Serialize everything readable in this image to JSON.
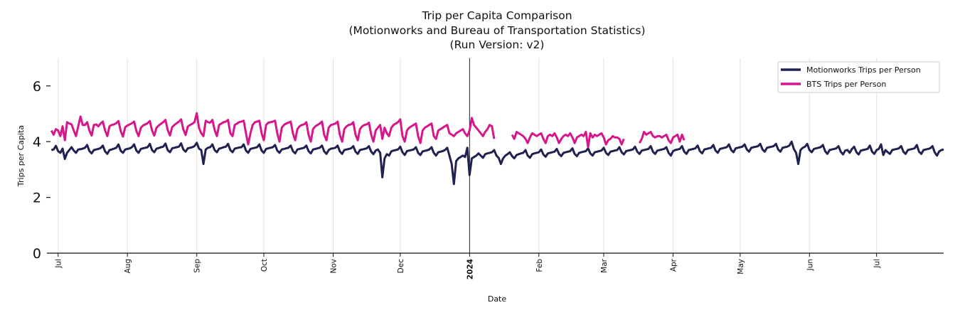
{
  "chart_data": {
    "type": "line",
    "title": [
      "Trip per Capita Comparison",
      "(Motionworks and Bureau of Transportation Statistics)",
      "(Run Version: v2)"
    ],
    "xlabel": "Date",
    "ylabel": "Trips per Capita",
    "xlim": [
      "2023-06-26",
      "2024-07-31"
    ],
    "ylim": [
      0,
      7
    ],
    "yticks": [
      0,
      2,
      4,
      6
    ],
    "ytick_labels": [
      "0",
      "2",
      "4",
      "6"
    ],
    "xticks": [
      {
        "date": "2023-07-01",
        "label": "Jul",
        "bold": false
      },
      {
        "date": "2023-08-01",
        "label": "Aug",
        "bold": false
      },
      {
        "date": "2023-09-01",
        "label": "Sep",
        "bold": false
      },
      {
        "date": "2023-10-01",
        "label": "Oct",
        "bold": false
      },
      {
        "date": "2023-11-01",
        "label": "Nov",
        "bold": false
      },
      {
        "date": "2023-12-01",
        "label": "Dec",
        "bold": false
      },
      {
        "date": "2024-01-01",
        "label": "2024",
        "bold": true
      },
      {
        "date": "2024-02-01",
        "label": "Feb",
        "bold": false
      },
      {
        "date": "2024-03-01",
        "label": "Mar",
        "bold": false
      },
      {
        "date": "2024-04-01",
        "label": "Apr",
        "bold": false
      },
      {
        "date": "2024-05-01",
        "label": "May",
        "bold": false
      },
      {
        "date": "2024-06-01",
        "label": "Jun",
        "bold": false
      },
      {
        "date": "2024-07-01",
        "label": "Jul",
        "bold": false
      }
    ],
    "vertical_marker": "2024-01-01",
    "grid": "vertical only",
    "legend": "top-right",
    "series": [
      {
        "name": "Motionworks Trips per Person",
        "color": "#1f2150",
        "daily_by_month": [
          {
            "month": "2023-06",
            "first_day": 28,
            "values": [
              3.7,
              3.72,
              3.85
            ]
          },
          {
            "month": "2023-07",
            "first_day": 1,
            "values": [
              3.66,
              3.6,
              3.75,
              3.38,
              3.6,
              3.7,
              3.8,
              3.68,
              3.6,
              3.72,
              3.73,
              3.75,
              3.78,
              3.88,
              3.66,
              3.58,
              3.7,
              3.72,
              3.74,
              3.77,
              3.86,
              3.65,
              3.56,
              3.7,
              3.72,
              3.75,
              3.78,
              3.9,
              3.67,
              3.6,
              3.72
            ]
          },
          {
            "month": "2023-08",
            "first_day": 1,
            "values": [
              3.74,
              3.76,
              3.8,
              3.9,
              3.68,
              3.6,
              3.74,
              3.76,
              3.78,
              3.8,
              3.92,
              3.7,
              3.62,
              3.75,
              3.77,
              3.8,
              3.82,
              3.93,
              3.7,
              3.62,
              3.76,
              3.78,
              3.8,
              3.82,
              3.94,
              3.72,
              3.64,
              3.76,
              3.78,
              3.8,
              3.84
            ]
          },
          {
            "month": "2023-09",
            "first_day": 1,
            "values": [
              3.96,
              3.75,
              3.7,
              3.2,
              3.72,
              3.78,
              3.8,
              3.9,
              3.7,
              3.62,
              3.75,
              3.77,
              3.8,
              3.82,
              3.92,
              3.7,
              3.62,
              3.75,
              3.77,
              3.79,
              3.8,
              3.9,
              3.68,
              3.6,
              3.74,
              3.76,
              3.78,
              3.8,
              3.9,
              3.68
            ]
          },
          {
            "month": "2023-10",
            "first_day": 1,
            "values": [
              3.6,
              3.74,
              3.76,
              3.78,
              3.8,
              3.88,
              3.68,
              3.6,
              3.72,
              3.74,
              3.76,
              3.78,
              3.86,
              3.66,
              3.58,
              3.72,
              3.74,
              3.76,
              3.78,
              3.86,
              3.66,
              3.58,
              3.72,
              3.74,
              3.76,
              3.78,
              3.86,
              3.65,
              3.56,
              3.7,
              3.75
            ]
          },
          {
            "month": "2023-11",
            "first_day": 1,
            "values": [
              3.76,
              3.78,
              3.86,
              3.65,
              3.56,
              3.7,
              3.72,
              3.74,
              3.76,
              3.84,
              3.64,
              3.56,
              3.7,
              3.72,
              3.74,
              3.76,
              3.84,
              3.64,
              3.55,
              3.68,
              3.72,
              3.6,
              2.72,
              3.4,
              3.55,
              3.5,
              3.65,
              3.68,
              3.7,
              3.72
            ]
          },
          {
            "month": "2023-12",
            "first_day": 1,
            "values": [
              3.82,
              3.62,
              3.52,
              3.66,
              3.68,
              3.7,
              3.72,
              3.8,
              3.6,
              3.52,
              3.65,
              3.67,
              3.69,
              3.72,
              3.8,
              3.6,
              3.5,
              3.62,
              3.64,
              3.66,
              3.7,
              3.78,
              3.5,
              3.2,
              2.48,
              3.3,
              3.4,
              3.45,
              3.5,
              3.45,
              3.78
            ]
          },
          {
            "month": "2024-01",
            "first_day": 1,
            "values": [
              2.8,
              3.4,
              3.45,
              3.5,
              3.58,
              3.5,
              3.42,
              3.55,
              3.58,
              3.6,
              3.62,
              3.7,
              3.5,
              3.42,
              3.2,
              3.4,
              3.5,
              3.55,
              3.62,
              3.48,
              3.4,
              3.52,
              3.55,
              3.58,
              3.6,
              3.7,
              3.5,
              3.42,
              3.55,
              3.58,
              3.6
            ]
          },
          {
            "month": "2024-02",
            "first_day": 1,
            "values": [
              3.62,
              3.72,
              3.54,
              3.46,
              3.58,
              3.6,
              3.62,
              3.64,
              3.74,
              3.56,
              3.48,
              3.6,
              3.62,
              3.64,
              3.66,
              3.76,
              3.56,
              3.48,
              3.6,
              3.62,
              3.64,
              3.66,
              3.76,
              3.58,
              3.5,
              3.62,
              3.64,
              3.66,
              3.68
            ]
          },
          {
            "month": "2024-03",
            "first_day": 1,
            "values": [
              3.78,
              3.6,
              3.52,
              3.64,
              3.66,
              3.68,
              3.7,
              3.8,
              3.62,
              3.54,
              3.66,
              3.68,
              3.7,
              3.72,
              3.82,
              3.64,
              3.56,
              3.68,
              3.7,
              3.72,
              3.74,
              3.84,
              3.64,
              3.56,
              3.68,
              3.7,
              3.72,
              3.74,
              3.8,
              3.6,
              3.5
            ]
          },
          {
            "month": "2024-04",
            "first_day": 1,
            "values": [
              3.66,
              3.7,
              3.72,
              3.74,
              3.84,
              3.64,
              3.56,
              3.7,
              3.72,
              3.74,
              3.76,
              3.86,
              3.66,
              3.58,
              3.72,
              3.74,
              3.76,
              3.78,
              3.88,
              3.68,
              3.6,
              3.74,
              3.76,
              3.78,
              3.8,
              3.9,
              3.7,
              3.62,
              3.76,
              3.78
            ]
          },
          {
            "month": "2024-05",
            "first_day": 1,
            "values": [
              3.8,
              3.82,
              3.9,
              3.72,
              3.64,
              3.78,
              3.8,
              3.82,
              3.84,
              3.92,
              3.72,
              3.64,
              3.78,
              3.8,
              3.82,
              3.84,
              3.92,
              3.72,
              3.64,
              3.78,
              3.8,
              3.82,
              3.86,
              4.0,
              3.74,
              3.6,
              3.2,
              3.7,
              3.78,
              3.82,
              3.92
            ]
          },
          {
            "month": "2024-06",
            "first_day": 1,
            "values": [
              3.7,
              3.62,
              3.74,
              3.76,
              3.78,
              3.8,
              3.88,
              3.66,
              3.56,
              3.7,
              3.72,
              3.74,
              3.76,
              3.84,
              3.64,
              3.54,
              3.68,
              3.7,
              3.6,
              3.74,
              3.82,
              3.62,
              3.54,
              3.68,
              3.7,
              3.72,
              3.74,
              3.86,
              3.64,
              3.56
            ]
          },
          {
            "month": "2024-07",
            "first_day": 1,
            "values": [
              3.7,
              3.74,
              3.9,
              3.52,
              3.7,
              3.62,
              3.56,
              3.7,
              3.72,
              3.74,
              3.76,
              3.84,
              3.64,
              3.56,
              3.7,
              3.72,
              3.74,
              3.76,
              3.88,
              3.64,
              3.56,
              3.7,
              3.72,
              3.74,
              3.76,
              3.84,
              3.62,
              3.5,
              3.65,
              3.7,
              3.72
            ]
          }
        ]
      },
      {
        "name": "BTS Trips per Person",
        "color": "#d6168a",
        "daily_by_month": [
          {
            "month": "2023-06",
            "first_day": 28,
            "values": [
              4.4,
              4.25,
              4.45
            ]
          },
          {
            "month": "2023-07",
            "first_day": 1,
            "values": [
              4.4,
              4.2,
              4.55,
              4.05,
              4.7,
              4.65,
              4.62,
              4.4,
              4.2,
              4.55,
              4.9,
              4.6,
              4.6,
              4.7,
              4.4,
              4.22,
              4.6,
              4.62,
              4.55,
              4.65,
              4.72,
              4.4,
              4.2,
              4.55,
              4.6,
              4.62,
              4.66,
              4.74,
              4.38,
              4.18,
              4.52
            ]
          },
          {
            "month": "2023-08",
            "first_day": 1,
            "values": [
              4.58,
              4.62,
              4.66,
              4.72,
              4.38,
              4.2,
              4.5,
              4.58,
              4.62,
              4.66,
              4.74,
              4.4,
              4.22,
              4.5,
              4.58,
              4.64,
              4.7,
              4.78,
              4.42,
              4.22,
              4.52,
              4.6,
              4.66,
              4.72,
              4.8,
              4.44,
              4.24,
              4.54,
              4.6,
              4.64,
              4.7
            ]
          },
          {
            "month": "2023-09",
            "first_day": 1,
            "values": [
              5.02,
              4.5,
              4.3,
              4.2,
              4.75,
              4.7,
              4.68,
              4.78,
              4.42,
              4.2,
              4.6,
              4.65,
              4.7,
              4.72,
              4.78,
              4.3,
              4.2,
              4.6,
              4.65,
              4.7,
              4.72,
              4.75,
              4.3,
              3.9,
              4.3,
              4.6,
              4.7,
              4.72,
              4.75,
              4.3
            ]
          },
          {
            "month": "2023-10",
            "first_day": 1,
            "values": [
              4.05,
              4.6,
              4.68,
              4.7,
              4.72,
              4.75,
              4.3,
              4.0,
              4.5,
              4.6,
              4.65,
              4.68,
              4.72,
              4.3,
              4.05,
              4.45,
              4.55,
              4.6,
              4.62,
              4.7,
              4.25,
              4.0,
              4.45,
              4.55,
              4.6,
              4.65,
              4.72,
              4.25,
              4.05,
              4.5,
              4.6
            ]
          },
          {
            "month": "2023-11",
            "first_day": 1,
            "values": [
              4.62,
              4.65,
              4.72,
              4.25,
              4.0,
              4.45,
              4.55,
              4.6,
              4.62,
              4.7,
              4.25,
              4.05,
              4.45,
              4.55,
              4.6,
              4.62,
              4.68,
              4.25,
              4.0,
              4.4,
              4.5,
              4.6,
              4.1,
              4.5,
              4.3,
              4.2,
              4.5,
              4.6,
              4.65,
              4.7
            ]
          },
          {
            "month": "2023-12",
            "first_day": 1,
            "values": [
              4.8,
              4.2,
              4.0,
              4.4,
              4.5,
              4.55,
              4.6,
              4.65,
              4.2,
              3.95,
              4.4,
              4.5,
              4.55,
              4.6,
              4.65,
              4.2,
              4.1,
              4.4,
              4.45,
              4.5,
              4.55,
              4.6,
              4.3,
              4.25,
              4.2,
              4.3,
              4.35,
              4.4,
              4.45,
              4.3,
              4.2
            ]
          },
          {
            "month": "2024-01",
            "first_day": 1,
            "values": [
              4.4,
              4.85,
              4.6,
              4.5,
              4.4,
              4.3,
              4.2,
              4.35,
              4.45,
              4.6,
              4.55,
              4.1,
              null,
              null,
              null,
              null,
              null,
              null,
              null,
              4.25,
              4.1,
              4.35,
              4.3,
              4.25,
              4.2,
              4.1,
              3.95,
              4.15,
              4.3,
              4.25,
              4.2
            ]
          },
          {
            "month": "2024-02",
            "first_day": 1,
            "values": [
              4.25,
              4.3,
              4.1,
              3.95,
              4.2,
              4.25,
              4.2,
              4.3,
              4.15,
              3.95,
              4.1,
              4.2,
              4.25,
              4.2,
              4.3,
              4.15,
              3.95,
              4.15,
              4.2,
              4.25,
              4.2,
              4.35,
              3.8,
              4.3,
              4.15,
              4.25,
              4.2,
              4.25,
              4.3
            ]
          },
          {
            "month": "2024-03",
            "first_day": 1,
            "values": [
              4.15,
              3.9,
              4.05,
              4.1,
              4.2,
              4.15,
              4.15,
              4.1,
              3.9,
              4.1,
              null,
              null,
              null,
              null,
              null,
              null,
              3.95,
              4.1,
              4.35,
              4.25,
              4.3,
              4.35,
              4.2,
              4.15,
              4.2,
              4.2,
              4.15,
              4.2,
              4.25,
              4.05,
              3.95
            ]
          },
          {
            "month": "2024-04",
            "first_day": 1,
            "values": [
              4.15,
              4.2,
              4.25,
              4.0,
              4.25,
              4.05
            ]
          }
        ]
      }
    ]
  }
}
